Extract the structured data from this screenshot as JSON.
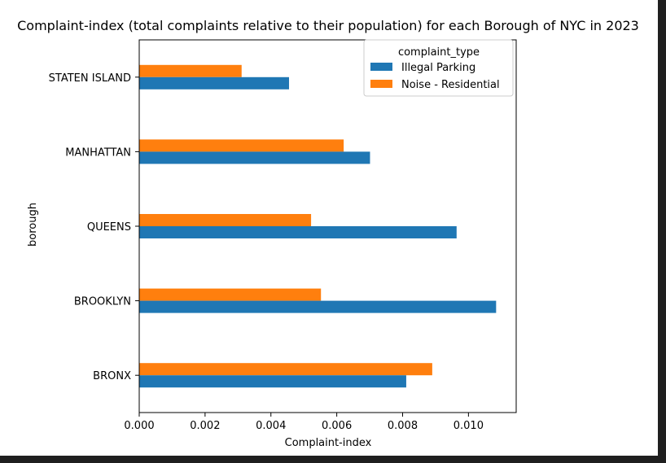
{
  "chart_data": {
    "type": "bar",
    "orientation": "horizontal",
    "title": "Complaint-index (total complaints relative to their population) for each Borough of NYC in 2023",
    "xlabel": "Complaint-index",
    "ylabel": "borough",
    "categories": [
      "BRONX",
      "BROOKLYN",
      "QUEENS",
      "MANHATTAN",
      "STATEN ISLAND"
    ],
    "series": [
      {
        "name": "Illegal Parking",
        "color": "#1f77b4",
        "values": [
          0.00811,
          0.01084,
          0.00964,
          0.00701,
          0.00455
        ]
      },
      {
        "name": "Noise - Residential",
        "color": "#ff7f0e",
        "values": [
          0.0089,
          0.00552,
          0.00522,
          0.00621,
          0.00311
        ]
      }
    ],
    "xlim": [
      0,
      0.01145
    ],
    "xticks": [
      "0.000",
      "0.002",
      "0.004",
      "0.006",
      "0.008",
      "0.010"
    ],
    "xtick_values": [
      0,
      0.002,
      0.004,
      0.006,
      0.008,
      0.01
    ],
    "legend": {
      "title": "complaint_type",
      "placement": "top-right"
    },
    "grid": false
  }
}
